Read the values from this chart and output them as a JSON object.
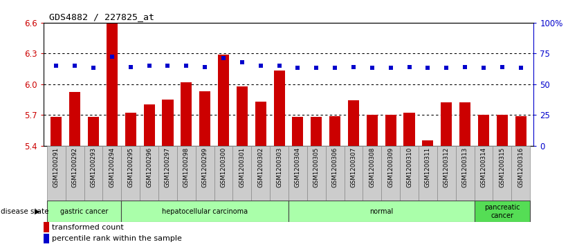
{
  "title": "GDS4882 / 227825_at",
  "samples": [
    "GSM1200291",
    "GSM1200292",
    "GSM1200293",
    "GSM1200294",
    "GSM1200295",
    "GSM1200296",
    "GSM1200297",
    "GSM1200298",
    "GSM1200299",
    "GSM1200300",
    "GSM1200301",
    "GSM1200302",
    "GSM1200303",
    "GSM1200304",
    "GSM1200305",
    "GSM1200306",
    "GSM1200307",
    "GSM1200308",
    "GSM1200309",
    "GSM1200310",
    "GSM1200311",
    "GSM1200312",
    "GSM1200313",
    "GSM1200314",
    "GSM1200315",
    "GSM1200316"
  ],
  "bar_values": [
    5.68,
    5.92,
    5.68,
    6.6,
    5.72,
    5.8,
    5.85,
    6.02,
    5.93,
    6.29,
    5.98,
    5.83,
    6.13,
    5.68,
    5.68,
    5.69,
    5.84,
    5.7,
    5.7,
    5.72,
    5.45,
    5.82,
    5.82,
    5.7,
    5.7,
    5.69
  ],
  "percentile_pct": [
    65,
    65,
    63,
    72,
    64,
    65,
    65,
    65,
    64,
    71,
    68,
    65,
    65,
    63,
    63,
    63,
    64,
    63,
    63,
    64,
    63,
    63,
    64,
    63,
    64,
    63
  ],
  "bar_color": "#cc0000",
  "dot_color": "#0000cc",
  "ylim": [
    5.4,
    6.6
  ],
  "yticks": [
    5.4,
    5.7,
    6.0,
    6.3,
    6.6
  ],
  "ytick_labels": [
    "5.4",
    "5.7",
    "6.0",
    "6.3",
    "6.6"
  ],
  "right_yticks": [
    0,
    25,
    50,
    75,
    100
  ],
  "right_ytick_labels": [
    "0",
    "25",
    "50",
    "75",
    "100%"
  ],
  "gridlines": [
    5.7,
    6.0,
    6.3
  ],
  "group_boundaries": [
    [
      0,
      4,
      "gastric cancer",
      "#aaffaa"
    ],
    [
      4,
      13,
      "hepatocellular carcinoma",
      "#aaffaa"
    ],
    [
      13,
      23,
      "normal",
      "#aaffaa"
    ],
    [
      23,
      26,
      "pancreatic\ncancer",
      "#55dd55"
    ]
  ],
  "disease_state_label": "disease state",
  "legend_bar_label": "transformed count",
  "legend_dot_label": "percentile rank within the sample",
  "plot_bg_color": "#ffffff",
  "tick_bg_color": "#cccccc"
}
